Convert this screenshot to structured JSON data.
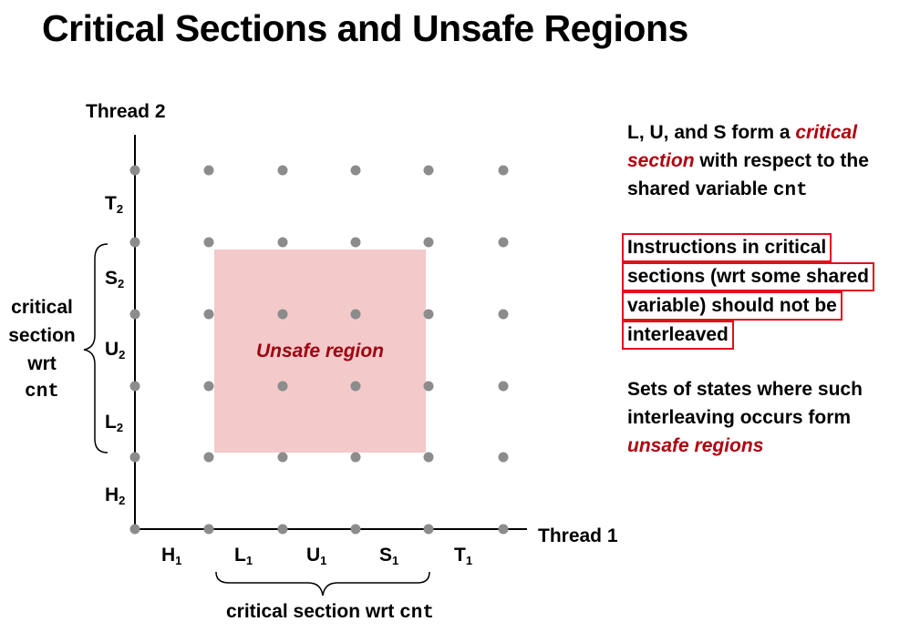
{
  "title": "Critical Sections and Unsafe Regions",
  "axes": {
    "y_axis_label": "Thread 2",
    "x_axis_label": "Thread 1"
  },
  "y_ticks": [
    {
      "letter": "T",
      "sub": "2"
    },
    {
      "letter": "S",
      "sub": "2"
    },
    {
      "letter": "U",
      "sub": "2"
    },
    {
      "letter": "L",
      "sub": "2"
    },
    {
      "letter": "H",
      "sub": "2"
    }
  ],
  "x_ticks": [
    {
      "letter": "H",
      "sub": "1"
    },
    {
      "letter": "L",
      "sub": "1"
    },
    {
      "letter": "U",
      "sub": "1"
    },
    {
      "letter": "S",
      "sub": "1"
    },
    {
      "letter": "T",
      "sub": "1"
    }
  ],
  "region_label": "Unsafe region",
  "side_caption": {
    "line1": "critical",
    "line2": "section",
    "line3": "wrt",
    "code": "cnt"
  },
  "bottom_caption": {
    "text": "critical section wrt ",
    "code": "cnt"
  },
  "notes": {
    "note1": {
      "part1": "L, U, and S form a ",
      "red1": "critical",
      "red2": "section",
      "part2": " with respect to the",
      "part3": "shared variable ",
      "code": "cnt"
    },
    "note2": {
      "line1": "Instructions in critical",
      "line2": "sections (wrt some shared",
      "line3": "variable) should not be",
      "line4": "interleaved"
    },
    "note3": {
      "line1": "Sets of states where such",
      "line2": "interleaving occurs form",
      "red": "unsafe regions"
    }
  },
  "colors": {
    "dot": "#8c8c8c",
    "region_fill": "#f3c9c9",
    "accent_red": "#b0000f",
    "box_border": "#e0101a"
  }
}
